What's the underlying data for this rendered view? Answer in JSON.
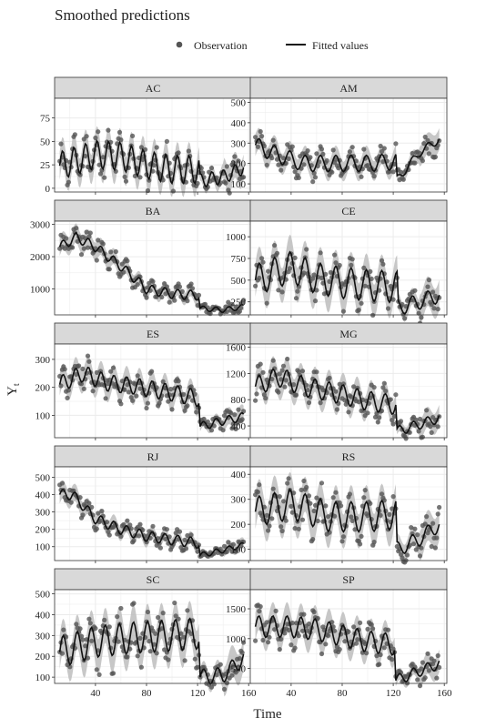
{
  "title": "Smoothed predictions",
  "xlabel": "Time",
  "ylabel": "Y",
  "ylabel_sub": "t",
  "legend": {
    "observation": "Observation",
    "fitted": "Fitted values"
  },
  "colors": {
    "points": "#555555",
    "line": "#111111",
    "band": "#bdbdbd",
    "strip": "#d9d9d9",
    "grid": "#ebebeb"
  },
  "chart_data": {
    "type": "line",
    "facet_layout": "2 columns x 5 rows",
    "legend_position": "top",
    "grid": true,
    "xlim": [
      8,
      162
    ],
    "xticks": [
      40,
      80,
      120,
      160
    ],
    "x_start": 12,
    "x_end": 156,
    "panels": [
      {
        "name": "AC",
        "ylim": [
          -4,
          96
        ],
        "yticks": [
          0,
          25,
          50,
          75
        ],
        "break": 122,
        "amp": 15,
        "period": 9,
        "knots": [
          [
            12,
            24
          ],
          [
            40,
            36
          ],
          [
            60,
            34
          ],
          [
            80,
            25
          ],
          [
            100,
            20
          ],
          [
            121,
            20
          ],
          [
            122,
            8
          ],
          [
            140,
            12
          ],
          [
            156,
            22
          ]
        ]
      },
      {
        "name": "AM",
        "ylim": [
          60,
          520
        ],
        "yticks": [
          100,
          200,
          300,
          400,
          500
        ],
        "break": 123,
        "amp": 40,
        "period": 12,
        "knots": [
          [
            12,
            290
          ],
          [
            30,
            240
          ],
          [
            50,
            200
          ],
          [
            70,
            200
          ],
          [
            100,
            200
          ],
          [
            122,
            210
          ],
          [
            123,
            120
          ],
          [
            140,
            250
          ],
          [
            156,
            320
          ]
        ]
      },
      {
        "name": "BA",
        "ylim": [
          200,
          3100
        ],
        "yticks": [
          1000,
          2000,
          3000
        ],
        "break": 122,
        "amp": 150,
        "period": 10,
        "knots": [
          [
            12,
            2300
          ],
          [
            25,
            2600
          ],
          [
            40,
            2300
          ],
          [
            60,
            1700
          ],
          [
            80,
            1000
          ],
          [
            100,
            850
          ],
          [
            121,
            800
          ],
          [
            122,
            400
          ],
          [
            140,
            350
          ],
          [
            156,
            450
          ]
        ]
      },
      {
        "name": "CE",
        "ylim": [
          100,
          1180
        ],
        "yticks": [
          250,
          500,
          750,
          1000
        ],
        "break": 124,
        "amp": 180,
        "period": 12,
        "knots": [
          [
            12,
            500
          ],
          [
            40,
            650
          ],
          [
            60,
            520
          ],
          [
            80,
            470
          ],
          [
            100,
            440
          ],
          [
            123,
            420
          ],
          [
            124,
            180
          ],
          [
            140,
            250
          ],
          [
            156,
            330
          ]
        ]
      },
      {
        "name": "ES",
        "ylim": [
          20,
          355
        ],
        "yticks": [
          100,
          200,
          300
        ],
        "break": 122,
        "amp": 30,
        "period": 10,
        "knots": [
          [
            12,
            210
          ],
          [
            30,
            250
          ],
          [
            50,
            215
          ],
          [
            70,
            205
          ],
          [
            100,
            180
          ],
          [
            121,
            160
          ],
          [
            122,
            60
          ],
          [
            140,
            80
          ],
          [
            156,
            95
          ]
        ]
      },
      {
        "name": "MG",
        "ylim": [
          220,
          1650
        ],
        "yticks": [
          400,
          800,
          1200,
          1600
        ],
        "break": 123,
        "amp": 150,
        "period": 11,
        "knots": [
          [
            12,
            1000
          ],
          [
            30,
            1150
          ],
          [
            50,
            1000
          ],
          [
            80,
            880
          ],
          [
            100,
            780
          ],
          [
            122,
            720
          ],
          [
            123,
            320
          ],
          [
            140,
            420
          ],
          [
            156,
            520
          ]
        ]
      },
      {
        "name": "RJ",
        "ylim": [
          20,
          560
        ],
        "yticks": [
          100,
          200,
          300,
          400,
          500
        ],
        "break": 122,
        "amp": 30,
        "period": 10,
        "knots": [
          [
            12,
            400
          ],
          [
            22,
            400
          ],
          [
            40,
            260
          ],
          [
            60,
            200
          ],
          [
            80,
            160
          ],
          [
            100,
            140
          ],
          [
            121,
            120
          ],
          [
            122,
            50
          ],
          [
            140,
            80
          ],
          [
            156,
            110
          ]
        ]
      },
      {
        "name": "RS",
        "ylim": [
          55,
          430
        ],
        "yticks": [
          100,
          200,
          300,
          400
        ],
        "break": 123,
        "amp": 60,
        "period": 12,
        "knots": [
          [
            12,
            250
          ],
          [
            40,
            280
          ],
          [
            70,
            230
          ],
          [
            100,
            230
          ],
          [
            122,
            240
          ],
          [
            123,
            100
          ],
          [
            140,
            140
          ],
          [
            156,
            200
          ]
        ]
      },
      {
        "name": "SC",
        "ylim": [
          70,
          520
        ],
        "yticks": [
          100,
          200,
          300,
          400,
          500
        ],
        "break": 122,
        "amp": 75,
        "period": 11,
        "knots": [
          [
            12,
            220
          ],
          [
            40,
            270
          ],
          [
            70,
            290
          ],
          [
            100,
            300
          ],
          [
            121,
            310
          ],
          [
            122,
            100
          ],
          [
            140,
            110
          ],
          [
            156,
            190
          ]
        ]
      },
      {
        "name": "SP",
        "ylim": [
          250,
          1820
        ],
        "yticks": [
          500,
          1000,
          1500
        ],
        "break": 122,
        "amp": 180,
        "period": 11,
        "knots": [
          [
            12,
            1200
          ],
          [
            40,
            1200
          ],
          [
            60,
            1150
          ],
          [
            80,
            1050
          ],
          [
            100,
            950
          ],
          [
            121,
            900
          ],
          [
            122,
            300
          ],
          [
            140,
            450
          ],
          [
            156,
            580
          ]
        ]
      }
    ]
  }
}
